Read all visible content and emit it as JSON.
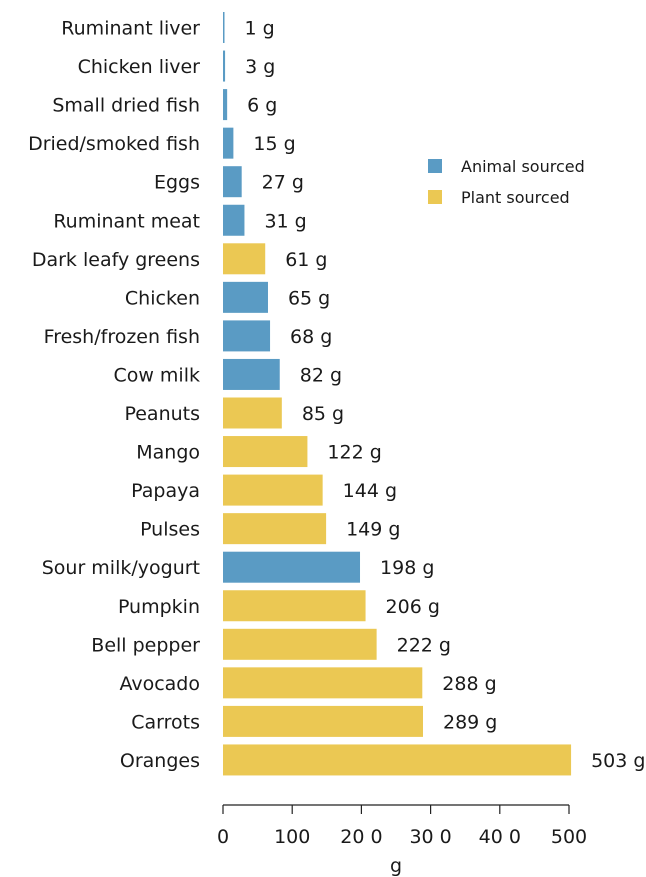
{
  "chart_data": {
    "type": "bar",
    "orientation": "horizontal",
    "xlabel": "g",
    "xlim": [
      0,
      500
    ],
    "xticks": [
      0,
      100,
      200,
      300,
      400,
      500
    ],
    "xtick_labels": [
      "0",
      "100",
      "20 0",
      "30 0",
      "40 0",
      "500"
    ],
    "grid": false,
    "legend_position": "top-right",
    "legend": [
      {
        "key": "animal",
        "label": "Animal sourced"
      },
      {
        "key": "plant",
        "label": "Plant sourced"
      }
    ],
    "colors": {
      "animal": "#5a9bc4",
      "plant": "#ebc853"
    },
    "bars": [
      {
        "category": "Ruminant liver",
        "value": 1,
        "label": "1 g",
        "group": "animal"
      },
      {
        "category": "Chicken liver",
        "value": 3,
        "label": "3 g",
        "group": "animal"
      },
      {
        "category": "Small dried fish",
        "value": 6,
        "label": "6 g",
        "group": "animal"
      },
      {
        "category": "Dried/smoked fish",
        "value": 15,
        "label": "15 g",
        "group": "animal"
      },
      {
        "category": "Eggs",
        "value": 27,
        "label": "27 g",
        "group": "animal"
      },
      {
        "category": "Ruminant meat",
        "value": 31,
        "label": "31 g",
        "group": "animal"
      },
      {
        "category": "Dark leafy greens",
        "value": 61,
        "label": "61 g",
        "group": "plant"
      },
      {
        "category": "Chicken",
        "value": 65,
        "label": "65 g",
        "group": "animal"
      },
      {
        "category": "Fresh/frozen fish",
        "value": 68,
        "label": "68 g",
        "group": "animal"
      },
      {
        "category": "Cow milk",
        "value": 82,
        "label": "82 g",
        "group": "animal"
      },
      {
        "category": "Peanuts",
        "value": 85,
        "label": "85 g",
        "group": "plant"
      },
      {
        "category": "Mango",
        "value": 122,
        "label": "122 g",
        "group": "plant"
      },
      {
        "category": "Papaya",
        "value": 144,
        "label": "144 g",
        "group": "plant"
      },
      {
        "category": "Pulses",
        "value": 149,
        "label": "149 g",
        "group": "plant"
      },
      {
        "category": "Sour milk/yogurt",
        "value": 198,
        "label": "198 g",
        "group": "animal"
      },
      {
        "category": "Pumpkin",
        "value": 206,
        "label": "206 g",
        "group": "plant"
      },
      {
        "category": "Bell pepper",
        "value": 222,
        "label": "222 g",
        "group": "plant"
      },
      {
        "category": "Avocado",
        "value": 288,
        "label": "288 g",
        "group": "plant"
      },
      {
        "category": "Carrots",
        "value": 289,
        "label": "289 g",
        "group": "plant"
      },
      {
        "category": "Oranges",
        "value": 503,
        "label": "503 g",
        "group": "plant"
      }
    ]
  }
}
